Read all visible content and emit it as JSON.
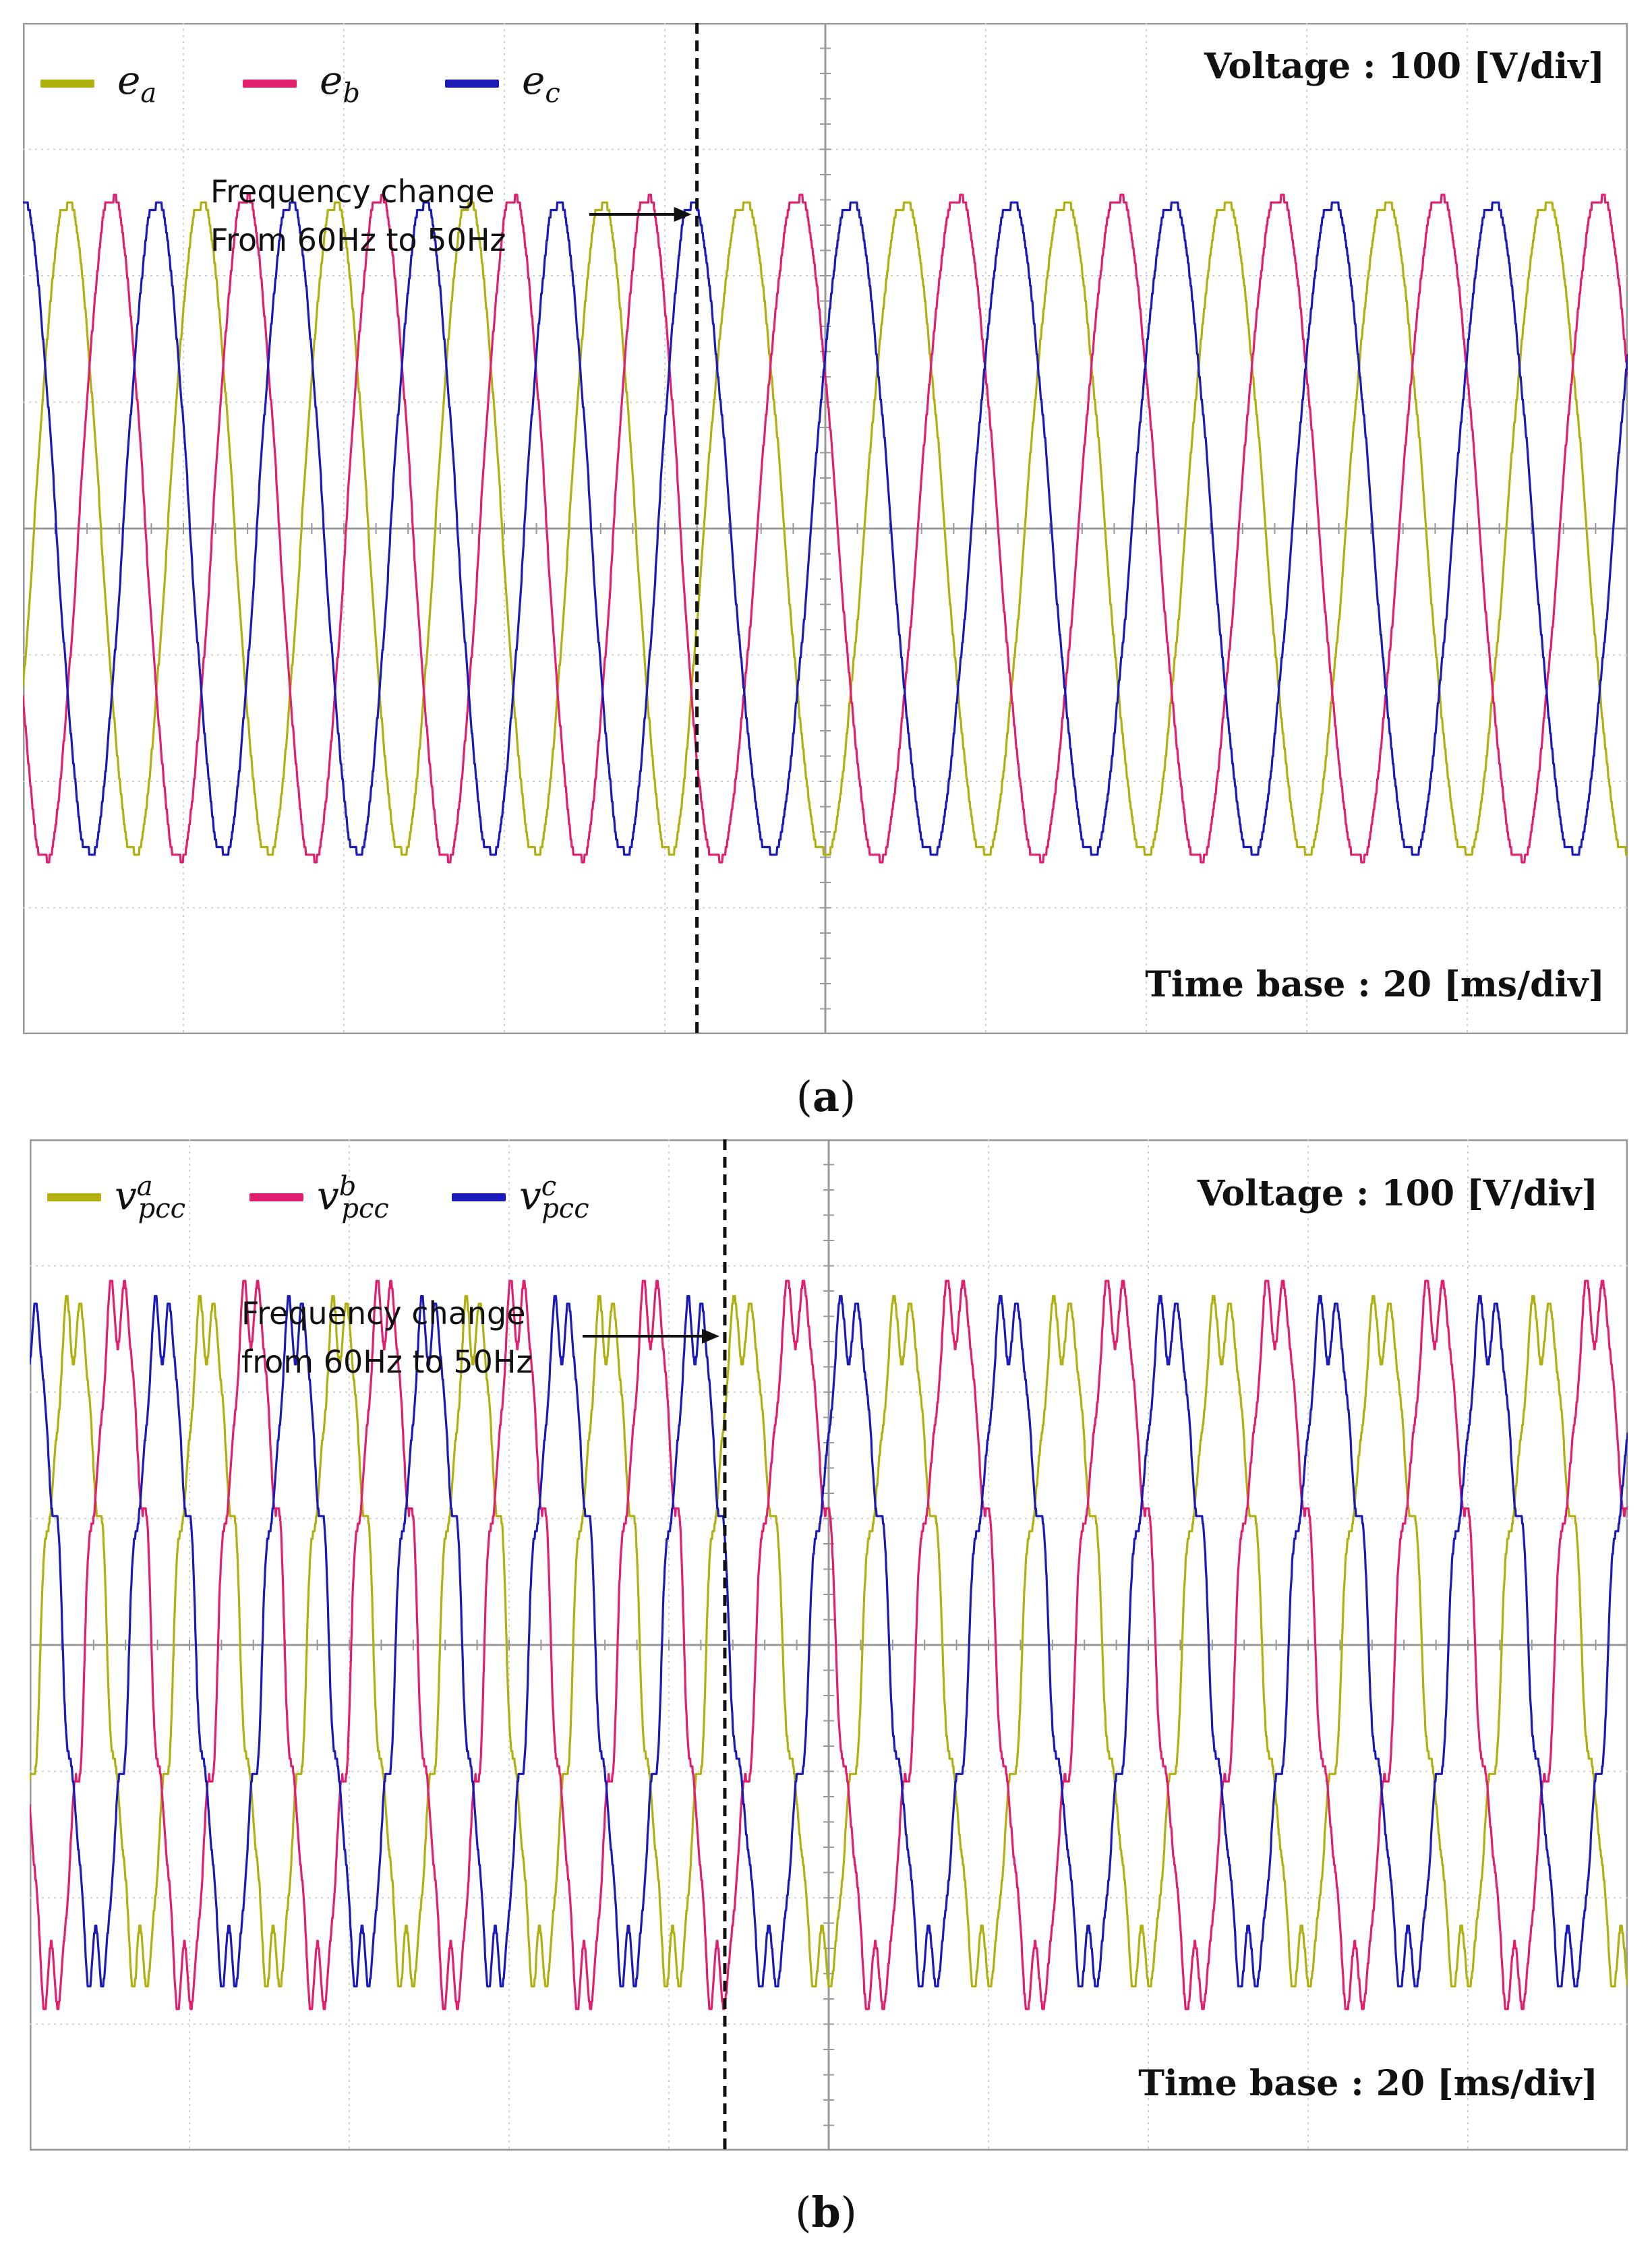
{
  "chart_data": [
    {
      "type": "line",
      "panel_label": "a",
      "scale_voltage": "Voltage : 100 [V/div]",
      "scale_time": "Time base : 20 [ms/div]",
      "annotation_lines": [
        "Frequency change",
        "From 60Hz to 50Hz"
      ],
      "x_divisions": 10,
      "y_divisions": 8,
      "ylim": [
        -400,
        400
      ],
      "xlim_ms": [
        0,
        200
      ],
      "event_time_ms": 84,
      "freq_before_hz": 60,
      "freq_after_hz": 50,
      "amplitude_v": 260,
      "phase_b_amplitude_v": 265,
      "ripple": 0.012,
      "series": [
        {
          "name": "e",
          "sub": "a",
          "sup": "",
          "phase_deg": -30,
          "color": "#b0b010"
        },
        {
          "name": "e",
          "sub": "b",
          "sup": "",
          "phase_deg": -150,
          "color": "#e0206e"
        },
        {
          "name": "e",
          "sub": "c",
          "sup": "",
          "phase_deg": 90,
          "color": "#1a1ab8"
        }
      ]
    },
    {
      "type": "line",
      "panel_label": "b",
      "scale_voltage": "Voltage : 100 [V/div]",
      "scale_time": "Time base : 20 [ms/div]",
      "annotation_lines": [
        "Frequency change",
        "from 60Hz to 50Hz"
      ],
      "x_divisions": 10,
      "y_divisions": 8,
      "ylim": [
        -400,
        400
      ],
      "xlim_ms": [
        0,
        200
      ],
      "event_time_ms": 87,
      "freq_before_hz": 60,
      "freq_after_hz": 50,
      "amplitude_v": 260,
      "phase_b_amplitude_v": 275,
      "ripple": 0.09,
      "series": [
        {
          "name": "v",
          "sub": "pcc",
          "sup": "a",
          "phase_deg": -30,
          "color": "#b0b010"
        },
        {
          "name": "v",
          "sub": "pcc",
          "sup": "b",
          "phase_deg": -150,
          "color": "#e0206e"
        },
        {
          "name": "v",
          "sub": "pcc",
          "sup": "c",
          "phase_deg": 90,
          "color": "#1a1ab8"
        }
      ]
    }
  ]
}
